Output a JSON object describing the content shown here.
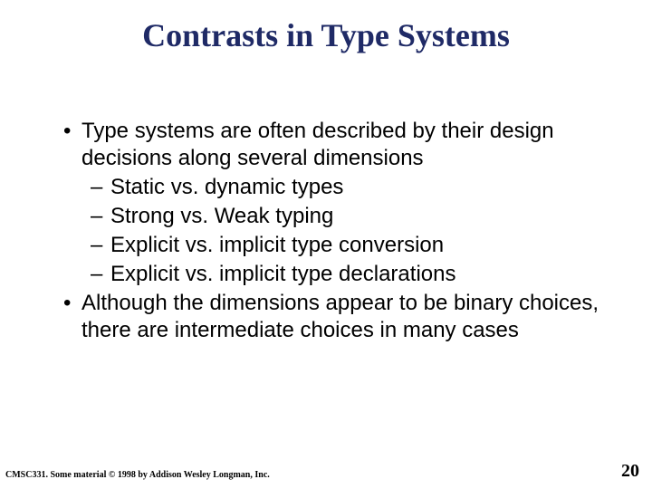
{
  "slide": {
    "title": "Contrasts in Type Systems",
    "bullets": [
      {
        "level": 1,
        "text": "Type systems are often described by their design decisions along several dimensions"
      },
      {
        "level": 2,
        "text": "Static vs. dynamic types"
      },
      {
        "level": 2,
        "text": "Strong vs. Weak typing"
      },
      {
        "level": 2,
        "text": "Explicit vs. implicit type conversion"
      },
      {
        "level": 2,
        "text": "Explicit vs. implicit type declarations"
      },
      {
        "level": 1,
        "text": "Although the dimensions appear to be binary choices, there are intermediate choices in many cases"
      }
    ],
    "footer_left": "CMSC331. Some material © 1998 by Addison Wesley Longman, Inc.",
    "page_number": "20",
    "colors": {
      "title": "#1f2a66",
      "body_text": "#000000",
      "background": "#ffffff"
    },
    "fonts": {
      "title_family": "Times New Roman",
      "title_size_pt": 36,
      "body_family": "Arial",
      "body_size_pt": 24,
      "footer_size_pt": 10,
      "page_num_size_pt": 20
    }
  }
}
